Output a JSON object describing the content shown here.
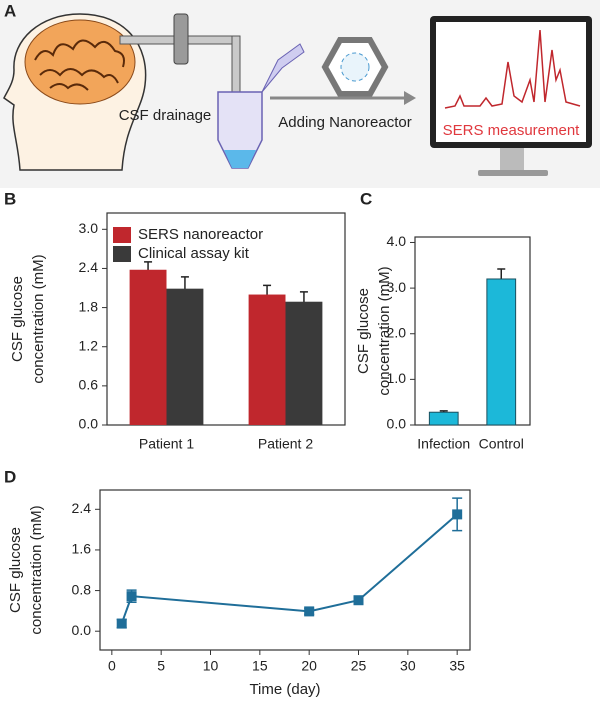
{
  "panel_a": {
    "label": "A",
    "drainage": "CSF drainage",
    "step": "Adding Nanoreactor",
    "measurement": "SERS measurement"
  },
  "chart_data": [
    {
      "type": "bar",
      "panel_label": "B",
      "ylabel": [
        "CSF glucose",
        "concentration (mM)"
      ],
      "categories": [
        "Patient 1",
        "Patient 2"
      ],
      "series": [
        {
          "name": "SERS nanoreactor",
          "color": "#c0272d",
          "values": [
            2.38,
            2.0
          ],
          "errors": [
            0.12,
            0.14
          ]
        },
        {
          "name": "Clinical assay kit",
          "color": "#3a3a3a",
          "values": [
            2.09,
            1.89
          ],
          "errors": [
            0.18,
            0.15
          ]
        }
      ],
      "ylim": [
        0,
        3.25
      ],
      "yticks": [
        {
          "value": 0,
          "label": "0.0"
        },
        {
          "value": 0.6,
          "label": "0.6"
        },
        {
          "value": 1.2,
          "label": "1.2"
        },
        {
          "value": 1.8,
          "label": "1.8"
        },
        {
          "value": 2.4,
          "label": "2.4"
        },
        {
          "value": 3.0,
          "label": "3.0"
        }
      ],
      "legend": true,
      "legend_position": "upper left",
      "grid": false
    },
    {
      "type": "bar",
      "panel_label": "C",
      "ylabel": [
        "CSF glucose",
        "concentration (mM)"
      ],
      "categories": [
        "Infection",
        "Control"
      ],
      "values": [
        0.28,
        3.2
      ],
      "errors": [
        0.03,
        0.22
      ],
      "color": "#1cb8d9",
      "ylim": [
        0,
        4.12
      ],
      "yticks": [
        {
          "value": 0,
          "label": "0.0"
        },
        {
          "value": 1,
          "label": "1.0"
        },
        {
          "value": 2,
          "label": "2.0"
        },
        {
          "value": 3,
          "label": "3.0"
        },
        {
          "value": 4,
          "label": "4.0"
        }
      ],
      "legend": false,
      "grid": false
    },
    {
      "type": "line",
      "panel_label": "D",
      "ylabel": [
        "CSF glucose",
        "concentration (mM)"
      ],
      "xlabel": "Time (day)",
      "x": [
        1,
        2,
        20,
        25,
        35
      ],
      "values": [
        0.15,
        0.69,
        0.39,
        0.61,
        2.3
      ],
      "errors": [
        0.08,
        0.12,
        0.06,
        0.06,
        0.32
      ],
      "color": "#1f6e99",
      "xlim": [
        -1.2,
        36.3
      ],
      "xticks": [
        0,
        5,
        10,
        15,
        20,
        25,
        30,
        35
      ],
      "ylim": [
        -0.37,
        2.78
      ],
      "yticks": [
        {
          "value": 0,
          "label": "0.0"
        },
        {
          "value": 0.8,
          "label": "0.8"
        },
        {
          "value": 1.6,
          "label": "1.6"
        },
        {
          "value": 2.4,
          "label": "2.4"
        }
      ],
      "legend": false,
      "grid": false
    }
  ]
}
